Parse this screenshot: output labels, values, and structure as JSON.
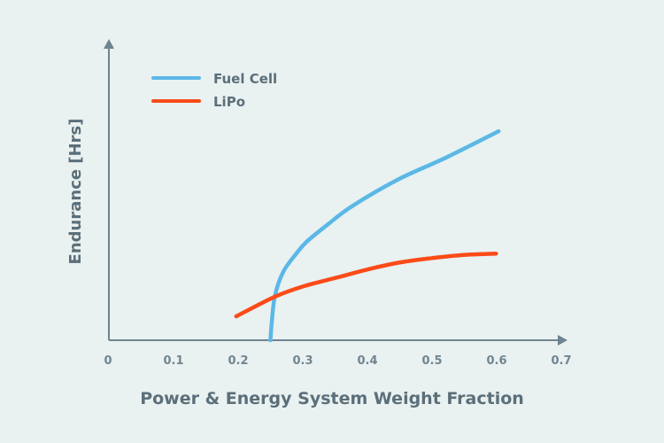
{
  "chart_data": {
    "type": "line",
    "title": "",
    "xlabel": "Power & Energy System Weight Fraction",
    "ylabel": "Endurance [Hrs]",
    "xlim": [
      0,
      0.7
    ],
    "ylim": [
      0,
      1
    ],
    "x_ticks": [
      "0",
      "0.1",
      "0.2",
      "0.3",
      "0.4",
      "0.5",
      "0.6",
      "0.7"
    ],
    "y_ticks": [],
    "grid": false,
    "legend_position": "top-left",
    "series": [
      {
        "name": "Fuel Cell",
        "color": "#5bb8e6",
        "x": [
          0.25,
          0.252,
          0.257,
          0.27,
          0.29,
          0.306,
          0.34,
          0.377,
          0.449,
          0.52,
          0.603
        ],
        "y": [
          0,
          0.06,
          0.15,
          0.23,
          0.29,
          0.33,
          0.39,
          0.45,
          0.54,
          0.61,
          0.7
        ]
      },
      {
        "name": "LiPo",
        "color": "#fb4b18",
        "x": [
          0.197,
          0.256,
          0.3,
          0.353,
          0.4,
          0.449,
          0.5,
          0.545,
          0.599
        ],
        "y": [
          0.08,
          0.145,
          0.18,
          0.21,
          0.237,
          0.26,
          0.275,
          0.285,
          0.29
        ]
      }
    ]
  }
}
